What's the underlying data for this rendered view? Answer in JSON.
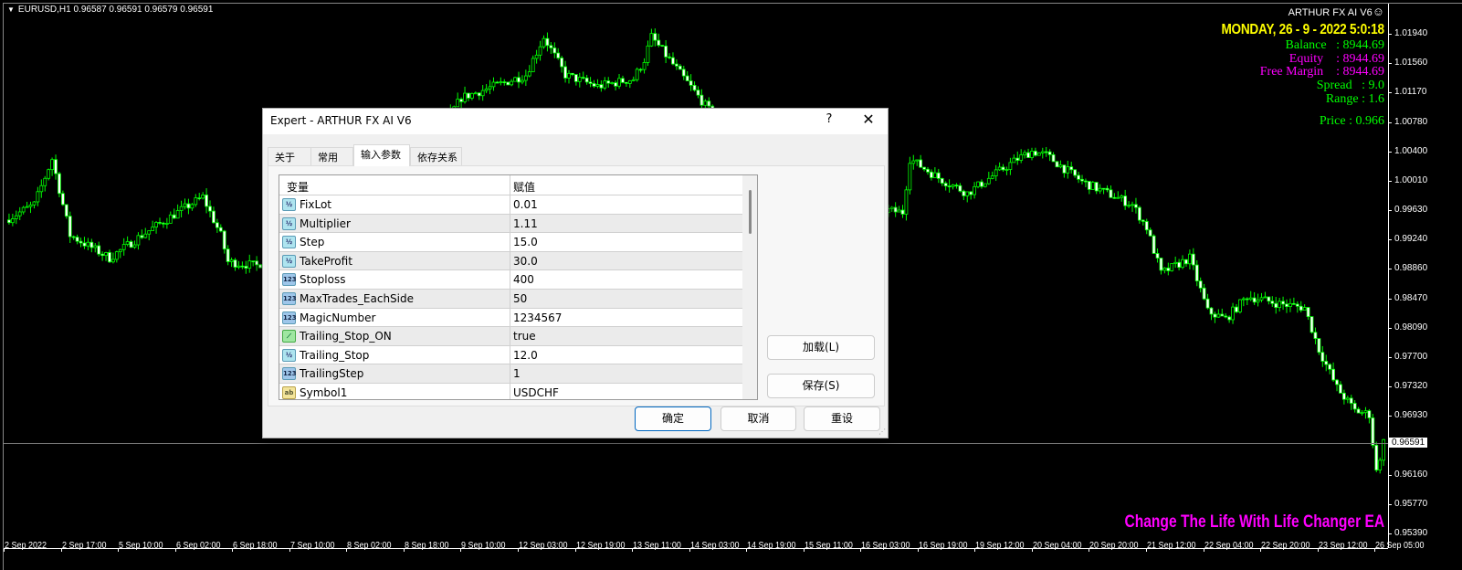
{
  "chart": {
    "symbol_line": "EURUSD,H1  0.96587 0.96591 0.96579 0.96591",
    "bull_color": "#00ff00",
    "bear_color": "#00ff00",
    "body_up_fill": "#000000",
    "body_down_fill": "#ffffff",
    "price_axis": [
      "1.01940",
      "1.01560",
      "1.01170",
      "1.00780",
      "1.00400",
      "1.00010",
      "0.99630",
      "0.99240",
      "0.98860",
      "0.98470",
      "0.98090",
      "0.97700",
      "0.97320",
      "0.96930",
      "0.96160",
      "0.95770",
      "0.95390"
    ],
    "bid_price": "0.96591",
    "time_axis": [
      "2 Sep 2022",
      "2 Sep 17:00",
      "5 Sep 10:00",
      "6 Sep 02:00",
      "6 Sep 18:00",
      "7 Sep 10:00",
      "8 Sep 02:00",
      "8 Sep 18:00",
      "9 Sep 10:00",
      "12 Sep 03:00",
      "12 Sep 19:00",
      "13 Sep 11:00",
      "14 Sep 03:00",
      "14 Sep 19:00",
      "15 Sep 11:00",
      "16 Sep 03:00",
      "16 Sep 19:00",
      "19 Sep 12:00",
      "20 Sep 04:00",
      "20 Sep 20:00",
      "21 Sep 12:00",
      "22 Sep 04:00",
      "22 Sep 20:00",
      "23 Sep 12:00",
      "26 Sep 05:00"
    ],
    "price_path": [
      [
        0,
        0.995
      ],
      [
        8,
        0.997
      ],
      [
        13,
        1.003
      ],
      [
        18,
        0.993
      ],
      [
        29,
        0.99
      ],
      [
        38,
        0.993
      ],
      [
        48,
        0.996
      ],
      [
        55,
        0.998
      ],
      [
        60,
        0.993
      ],
      [
        62,
        0.9895
      ],
      [
        70,
        0.989
      ],
      [
        90,
        0.995
      ],
      [
        110,
        0.999
      ],
      [
        127,
        1.011
      ],
      [
        145,
        1.014
      ],
      [
        150,
        1.019
      ],
      [
        156,
        1.014
      ],
      [
        165,
        1.0125
      ],
      [
        175,
        1.0135
      ],
      [
        178,
        1.016
      ],
      [
        180,
        1.019
      ],
      [
        215,
        0.998
      ],
      [
        250,
        0.996
      ],
      [
        252,
        1.003
      ],
      [
        260,
        1.0005
      ],
      [
        268,
        0.9985
      ],
      [
        282,
        1.003
      ],
      [
        286,
        1.004
      ],
      [
        290,
        1.0035
      ],
      [
        300,
        1.0
      ],
      [
        314,
        0.997
      ],
      [
        318,
        0.994
      ],
      [
        322,
        0.988
      ],
      [
        330,
        0.99
      ],
      [
        335,
        0.983
      ],
      [
        340,
        0.982
      ],
      [
        346,
        0.985
      ],
      [
        355,
        0.984
      ],
      [
        362,
        0.9835
      ],
      [
        366,
        0.978
      ],
      [
        371,
        0.973
      ],
      [
        376,
        0.97
      ],
      [
        380,
        0.9695
      ],
      [
        382,
        0.962
      ],
      [
        384,
        0.9659
      ]
    ]
  },
  "info_panel": {
    "ea_name": "ARTHUR FX AI V6",
    "smiley": "☺",
    "date": "MONDAY, 26 - 9 - 2022 5:0:18",
    "balance": "Balance   : 8944.69",
    "equity": "Equity    : 8944.69",
    "free_margin": "Free Margin    : 8944.69",
    "spread": "Spread   : 9.0",
    "range": "Range : 1.6",
    "price": "Price : 0.966",
    "colors": {
      "date": "#ffff00",
      "balance": "#00ff00",
      "equity": "#ff00ff",
      "free_margin": "#ff00ff",
      "spread": "#00ff00",
      "range": "#00ff00",
      "price": "#00ff00"
    }
  },
  "slogan": "Change The Life With Life Changer EA",
  "dialog": {
    "title": "Expert - ARTHUR FX AI V6",
    "help": "?",
    "close": "✕",
    "tabs": [
      "关于",
      "常用",
      "输入参数",
      "依存关系"
    ],
    "active_tab": "输入参数",
    "columns": [
      "变量",
      "赋值"
    ],
    "rows": [
      {
        "type": "double",
        "icon": "½",
        "name": "FixLot",
        "value": "0.01"
      },
      {
        "type": "double",
        "icon": "½",
        "name": "Multiplier",
        "value": "1.11"
      },
      {
        "type": "double",
        "icon": "½",
        "name": "Step",
        "value": "15.0"
      },
      {
        "type": "double",
        "icon": "½",
        "name": "TakeProfit",
        "value": "30.0"
      },
      {
        "type": "int",
        "icon": "123",
        "name": "Stoploss",
        "value": "400"
      },
      {
        "type": "int",
        "icon": "123",
        "name": "MaxTrades_EachSide",
        "value": "50"
      },
      {
        "type": "int",
        "icon": "123",
        "name": "MagicNumber",
        "value": "1234567"
      },
      {
        "type": "bool",
        "icon": "⟋",
        "name": "Trailing_Stop_ON",
        "value": "true"
      },
      {
        "type": "double",
        "icon": "½",
        "name": "Trailing_Stop",
        "value": "12.0"
      },
      {
        "type": "int",
        "icon": "123",
        "name": "TrailingStep",
        "value": "1"
      },
      {
        "type": "str",
        "icon": "ab",
        "name": "Symbol1",
        "value": "USDCHF"
      }
    ],
    "load_btn": "加载(L)",
    "save_btn": "保存(S)",
    "ok_btn": "确定",
    "cancel_btn": "取消",
    "reset_btn": "重设"
  }
}
